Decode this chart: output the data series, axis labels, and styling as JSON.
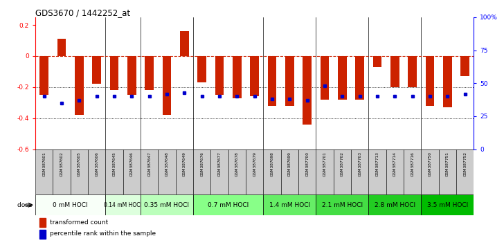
{
  "title": "GDS3670 / 1442252_at",
  "samples": [
    "GSM387601",
    "GSM387602",
    "GSM387605",
    "GSM387606",
    "GSM387645",
    "GSM387646",
    "GSM387647",
    "GSM387648",
    "GSM387649",
    "GSM387676",
    "GSM387677",
    "GSM387678",
    "GSM387679",
    "GSM387698",
    "GSM387699",
    "GSM387700",
    "GSM387701",
    "GSM387702",
    "GSM387703",
    "GSM387713",
    "GSM387714",
    "GSM387716",
    "GSM387750",
    "GSM387751",
    "GSM387752"
  ],
  "red_values": [
    -0.25,
    0.11,
    -0.38,
    -0.18,
    -0.22,
    -0.25,
    -0.22,
    -0.38,
    0.16,
    -0.17,
    -0.25,
    -0.27,
    -0.26,
    -0.32,
    -0.32,
    -0.44,
    -0.28,
    -0.28,
    -0.28,
    -0.07,
    -0.2,
    -0.2,
    -0.32,
    -0.33,
    -0.13
  ],
  "blue_values": [
    40,
    35,
    37,
    40,
    40,
    40,
    40,
    42,
    43,
    40,
    40,
    40,
    40,
    38,
    38,
    37,
    48,
    40,
    40,
    40,
    40,
    40,
    40,
    40,
    42
  ],
  "dose_groups": [
    {
      "label": "0 mM HOCl",
      "start": 0,
      "end": 4,
      "color": "#f8fff8"
    },
    {
      "label": "0.14 mM HOCl",
      "start": 4,
      "end": 6,
      "color": "#ddffdd"
    },
    {
      "label": "0.35 mM HOCl",
      "start": 6,
      "end": 9,
      "color": "#bbffbb"
    },
    {
      "label": "0.7 mM HOCl",
      "start": 9,
      "end": 13,
      "color": "#88ff88"
    },
    {
      "label": "1.4 mM HOCl",
      "start": 13,
      "end": 16,
      "color": "#66ee66"
    },
    {
      "label": "2.1 mM HOCl",
      "start": 16,
      "end": 19,
      "color": "#44dd44"
    },
    {
      "label": "2.8 mM HOCl",
      "start": 19,
      "end": 22,
      "color": "#22cc22"
    },
    {
      "label": "3.5 mM HOCl",
      "start": 22,
      "end": 25,
      "color": "#00bb00"
    }
  ],
  "ylim_left": [
    -0.6,
    0.25
  ],
  "ylim_right": [
    0,
    100
  ],
  "yticks_left": [
    -0.6,
    -0.4,
    -0.2,
    0.0,
    0.2
  ],
  "ytick_left_labels": [
    "-0.6",
    "-0.4",
    "-0.2",
    "0",
    "0.2"
  ],
  "yticks_right": [
    0,
    25,
    50,
    75,
    100
  ],
  "ytick_right_labels": [
    "0",
    "25",
    "50",
    "75",
    "100%"
  ],
  "hline_y": 0.0,
  "dotted_lines": [
    -0.2,
    -0.4
  ],
  "bar_color": "#cc2200",
  "blue_color": "#0000cc",
  "bg_color": "#ffffff",
  "label_bg": "#cccccc",
  "group_boundaries": [
    0,
    4,
    6,
    9,
    13,
    16,
    19,
    22,
    25
  ]
}
